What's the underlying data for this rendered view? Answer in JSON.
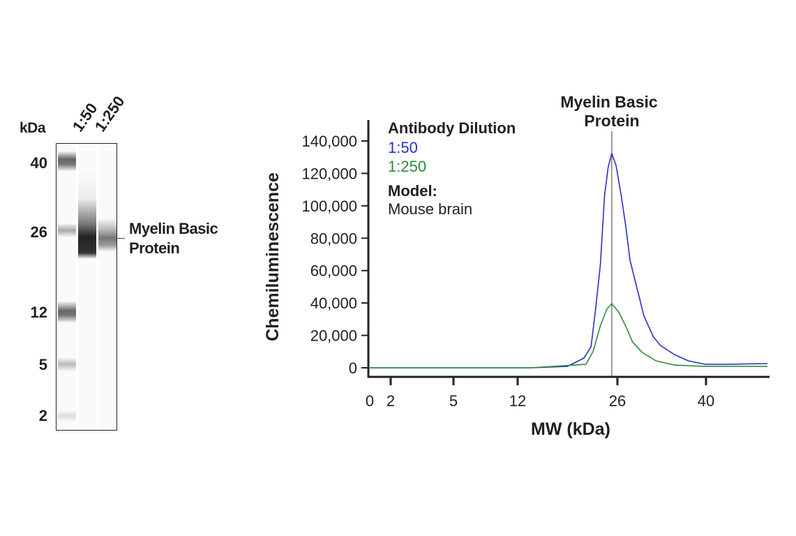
{
  "blot": {
    "unit_label": "kDa",
    "lane_labels": [
      "1:50",
      "1:250"
    ],
    "mw_markers": [
      "40",
      "26",
      "12",
      "5",
      "2"
    ],
    "band_label_line1": "Myelin Basic",
    "band_label_line2": "Protein"
  },
  "chart_data": {
    "type": "line",
    "title": "",
    "annotation_line1": "Myelin Basic",
    "annotation_line2": "Protein",
    "annotation_x": 25.2,
    "xlabel": "MW (kDa)",
    "ylabel": "Chemiluminescence",
    "x_ticks": [
      0,
      2,
      5,
      12,
      26,
      40
    ],
    "x_tick_labels": [
      "0",
      "2",
      "5",
      "12",
      "26",
      "40"
    ],
    "x_scale": "nonlinear (marker-calibrated)",
    "y_ticks": [
      0,
      20000,
      40000,
      60000,
      80000,
      100000,
      120000,
      140000
    ],
    "y_tick_labels": [
      "0",
      "20,000",
      "40,000",
      "60,000",
      "80,000",
      "100,000",
      "120,000",
      "140,000"
    ],
    "ylim": [
      0,
      140000
    ],
    "grid": false,
    "legend": {
      "title": "Antibody Dilution",
      "placement": "top-left",
      "model_label": "Model:",
      "model_value": "Mouse brain"
    },
    "series": [
      {
        "name": "1:50",
        "color": "#2b2fc8",
        "x": [
          0,
          13.8,
          19.0,
          21.3,
          22.3,
          22.9,
          23.6,
          24.2,
          24.7,
          25.2,
          25.8,
          26.6,
          27.3,
          28.0,
          29.1,
          30.2,
          31.7,
          32.8,
          35.0,
          37.2,
          39.8,
          43.4,
          49.7
        ],
        "y": [
          0,
          0,
          900,
          6000,
          13000,
          34500,
          63300,
          106400,
          123600,
          132300,
          125000,
          106400,
          87900,
          66300,
          49100,
          31900,
          19000,
          13800,
          8200,
          4300,
          2200,
          2200,
          2600
        ]
      },
      {
        "name": "1:250",
        "color": "#2e8b3a",
        "x": [
          0,
          13.8,
          21.6,
          22.6,
          23.6,
          24.5,
          25.2,
          26.2,
          27.3,
          28.4,
          29.9,
          32.1,
          35.0,
          39.8,
          49.7
        ],
        "y": [
          0,
          0,
          2200,
          10300,
          25800,
          36200,
          39600,
          34500,
          25800,
          15900,
          9500,
          4300,
          1700,
          900,
          900
        ]
      }
    ]
  }
}
